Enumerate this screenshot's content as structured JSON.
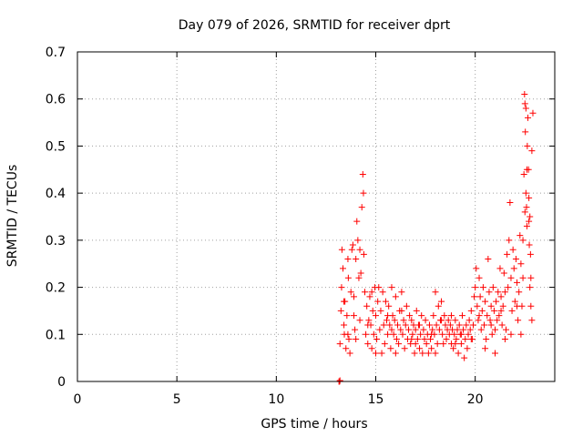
{
  "chart_data": {
    "type": "scatter",
    "title": "Day 079 of 2026, SRMTID for receiver dprt",
    "xlabel": "GPS time / hours",
    "ylabel": "SRMTID / TECUs",
    "xlim": [
      0,
      24
    ],
    "ylim": [
      0,
      0.7
    ],
    "x_ticks": [
      0,
      5,
      10,
      15,
      20
    ],
    "x_tick_labels": [
      "0",
      "5",
      "10",
      "15",
      "20"
    ],
    "y_ticks": [
      0,
      0.1,
      0.2,
      0.3,
      0.4,
      0.5,
      0.6,
      0.7
    ],
    "y_tick_labels": [
      "0",
      "0.1",
      "0.2",
      "0.3",
      "0.4",
      "0.5",
      "0.6",
      "0.7"
    ],
    "grid": true,
    "marker": "+",
    "color": "#ff0000",
    "series": [
      {
        "name": "SRMTID",
        "points": [
          [
            13.15,
            0.0
          ],
          [
            13.18,
            0.0
          ],
          [
            13.2,
            0.002
          ],
          [
            13.2,
            0.08
          ],
          [
            13.25,
            0.15
          ],
          [
            13.28,
            0.2
          ],
          [
            13.3,
            0.28
          ],
          [
            13.35,
            0.24
          ],
          [
            13.4,
            0.12
          ],
          [
            13.42,
            0.1
          ],
          [
            13.45,
            0.17
          ],
          [
            13.5,
            0.07
          ],
          [
            13.55,
            0.14
          ],
          [
            13.6,
            0.26
          ],
          [
            13.62,
            0.22
          ],
          [
            13.65,
            0.09
          ],
          [
            13.7,
            0.06
          ],
          [
            13.75,
            0.19
          ],
          [
            13.8,
            0.28
          ],
          [
            13.85,
            0.29
          ],
          [
            13.9,
            0.14
          ],
          [
            13.95,
            0.11
          ],
          [
            14.0,
            0.26
          ],
          [
            14.05,
            0.34
          ],
          [
            14.1,
            0.3
          ],
          [
            14.15,
            0.22
          ],
          [
            14.2,
            0.28
          ],
          [
            14.25,
            0.23
          ],
          [
            14.3,
            0.37
          ],
          [
            14.35,
            0.44
          ],
          [
            14.38,
            0.4
          ],
          [
            14.4,
            0.27
          ],
          [
            14.45,
            0.19
          ],
          [
            14.5,
            0.1
          ],
          [
            14.55,
            0.16
          ],
          [
            14.6,
            0.08
          ],
          [
            14.65,
            0.13
          ],
          [
            14.7,
            0.18
          ],
          [
            14.75,
            0.12
          ],
          [
            14.8,
            0.07
          ],
          [
            14.85,
            0.15
          ],
          [
            14.9,
            0.1
          ],
          [
            14.95,
            0.2
          ],
          [
            15.0,
            0.14
          ],
          [
            15.05,
            0.09
          ],
          [
            15.1,
            0.17
          ],
          [
            15.15,
            0.2
          ],
          [
            15.2,
            0.11
          ],
          [
            15.25,
            0.15
          ],
          [
            15.3,
            0.06
          ],
          [
            15.35,
            0.19
          ],
          [
            15.4,
            0.12
          ],
          [
            15.45,
            0.08
          ],
          [
            15.5,
            0.17
          ],
          [
            15.55,
            0.13
          ],
          [
            15.6,
            0.1
          ],
          [
            15.65,
            0.16
          ],
          [
            15.7,
            0.12
          ],
          [
            15.75,
            0.07
          ],
          [
            15.8,
            0.2
          ],
          [
            15.85,
            0.14
          ],
          [
            15.9,
            0.1
          ],
          [
            15.95,
            0.13
          ],
          [
            16.0,
            0.18
          ],
          [
            16.05,
            0.09
          ],
          [
            16.1,
            0.12
          ],
          [
            16.15,
            0.08
          ],
          [
            16.2,
            0.15
          ],
          [
            16.25,
            0.11
          ],
          [
            16.3,
            0.19
          ],
          [
            16.35,
            0.1
          ],
          [
            16.4,
            0.13
          ],
          [
            16.45,
            0.07
          ],
          [
            16.5,
            0.12
          ],
          [
            16.55,
            0.16
          ],
          [
            16.6,
            0.09
          ],
          [
            16.65,
            0.11
          ],
          [
            16.7,
            0.14
          ],
          [
            16.75,
            0.08
          ],
          [
            16.8,
            0.13
          ],
          [
            16.85,
            0.1
          ],
          [
            16.9,
            0.12
          ],
          [
            16.95,
            0.06
          ],
          [
            17.0,
            0.11
          ],
          [
            17.05,
            0.15
          ],
          [
            17.1,
            0.09
          ],
          [
            17.15,
            0.12
          ],
          [
            17.2,
            0.07
          ],
          [
            17.25,
            0.1
          ],
          [
            17.3,
            0.14
          ],
          [
            17.35,
            0.06
          ],
          [
            17.4,
            0.11
          ],
          [
            17.45,
            0.09
          ],
          [
            17.5,
            0.13
          ],
          [
            17.55,
            0.08
          ],
          [
            17.6,
            0.1
          ],
          [
            17.65,
            0.06
          ],
          [
            17.7,
            0.12
          ],
          [
            17.75,
            0.09
          ],
          [
            17.8,
            0.07
          ],
          [
            17.85,
            0.11
          ],
          [
            17.9,
            0.14
          ],
          [
            17.95,
            0.1
          ],
          [
            18.0,
            0.19
          ],
          [
            18.05,
            0.12
          ],
          [
            18.1,
            0.08
          ],
          [
            18.15,
            0.16
          ],
          [
            18.2,
            0.11
          ],
          [
            18.25,
            0.13
          ],
          [
            18.3,
            0.17
          ],
          [
            18.35,
            0.1
          ],
          [
            18.4,
            0.08
          ],
          [
            18.45,
            0.14
          ],
          [
            18.5,
            0.12
          ],
          [
            18.55,
            0.09
          ],
          [
            18.6,
            0.11
          ],
          [
            18.65,
            0.13
          ],
          [
            18.7,
            0.1
          ],
          [
            18.75,
            0.12
          ],
          [
            18.8,
            0.08
          ],
          [
            18.85,
            0.11
          ],
          [
            18.9,
            0.07
          ],
          [
            18.95,
            0.1
          ],
          [
            19.0,
            0.13
          ],
          [
            19.05,
            0.09
          ],
          [
            19.1,
            0.11
          ],
          [
            19.15,
            0.06
          ],
          [
            19.2,
            0.12
          ],
          [
            19.25,
            0.1
          ],
          [
            19.3,
            0.08
          ],
          [
            19.35,
            0.14
          ],
          [
            19.4,
            0.11
          ],
          [
            19.45,
            0.05
          ],
          [
            19.5,
            0.09
          ],
          [
            19.55,
            0.12
          ],
          [
            19.6,
            0.07
          ],
          [
            19.65,
            0.1
          ],
          [
            19.7,
            0.13
          ],
          [
            19.75,
            0.11
          ],
          [
            19.8,
            0.15
          ],
          [
            19.85,
            0.09
          ],
          [
            19.9,
            0.12
          ],
          [
            19.95,
            0.18
          ],
          [
            20.0,
            0.2
          ],
          [
            20.05,
            0.24
          ],
          [
            20.1,
            0.16
          ],
          [
            20.15,
            0.13
          ],
          [
            20.2,
            0.22
          ],
          [
            20.25,
            0.18
          ],
          [
            20.3,
            0.11
          ],
          [
            20.35,
            0.15
          ],
          [
            20.4,
            0.2
          ],
          [
            20.45,
            0.12
          ],
          [
            20.5,
            0.17
          ],
          [
            20.55,
            0.09
          ],
          [
            20.6,
            0.14
          ],
          [
            20.65,
            0.26
          ],
          [
            20.7,
            0.19
          ],
          [
            20.75,
            0.13
          ],
          [
            20.8,
            0.16
          ],
          [
            20.85,
            0.1
          ],
          [
            20.9,
            0.2
          ],
          [
            20.95,
            0.15
          ],
          [
            21.0,
            0.11
          ],
          [
            21.05,
            0.17
          ],
          [
            21.1,
            0.13
          ],
          [
            21.15,
            0.19
          ],
          [
            21.2,
            0.14
          ],
          [
            21.25,
            0.24
          ],
          [
            21.3,
            0.18
          ],
          [
            21.35,
            0.12
          ],
          [
            21.4,
            0.16
          ],
          [
            21.45,
            0.23
          ],
          [
            21.5,
            0.19
          ],
          [
            21.55,
            0.11
          ],
          [
            21.6,
            0.27
          ],
          [
            21.65,
            0.2
          ],
          [
            21.7,
            0.3
          ],
          [
            21.75,
            0.38
          ],
          [
            21.8,
            0.22
          ],
          [
            21.85,
            0.15
          ],
          [
            21.9,
            0.28
          ],
          [
            21.95,
            0.24
          ],
          [
            22.0,
            0.17
          ],
          [
            22.05,
            0.26
          ],
          [
            22.1,
            0.21
          ],
          [
            22.15,
            0.13
          ],
          [
            22.2,
            0.19
          ],
          [
            22.25,
            0.31
          ],
          [
            22.3,
            0.25
          ],
          [
            22.35,
            0.16
          ],
          [
            22.4,
            0.22
          ],
          [
            22.45,
            0.44
          ],
          [
            22.48,
            0.61
          ],
          [
            22.5,
            0.59
          ],
          [
            22.52,
            0.53
          ],
          [
            22.55,
            0.4
          ],
          [
            22.58,
            0.37
          ],
          [
            22.6,
            0.33
          ],
          [
            22.62,
            0.5
          ],
          [
            22.65,
            0.56
          ],
          [
            22.68,
            0.45
          ],
          [
            22.7,
            0.34
          ],
          [
            22.72,
            0.29
          ],
          [
            22.75,
            0.2
          ],
          [
            22.78,
            0.27
          ],
          [
            22.8,
            0.22
          ],
          [
            22.85,
            0.13
          ],
          [
            22.4,
            0.3
          ],
          [
            22.3,
            0.1
          ],
          [
            21.5,
            0.09
          ],
          [
            21.0,
            0.06
          ],
          [
            20.5,
            0.07
          ],
          [
            19.0,
            0.08
          ],
          [
            18.0,
            0.06
          ],
          [
            17.0,
            0.08
          ],
          [
            16.0,
            0.06
          ],
          [
            15.0,
            0.06
          ],
          [
            14.0,
            0.09
          ],
          [
            13.6,
            0.1
          ],
          [
            14.2,
            0.13
          ],
          [
            14.8,
            0.19
          ],
          [
            15.6,
            0.14
          ],
          [
            16.3,
            0.15
          ],
          [
            17.2,
            0.12
          ],
          [
            18.3,
            0.13
          ],
          [
            19.3,
            0.1
          ],
          [
            20.2,
            0.14
          ],
          [
            21.3,
            0.15
          ],
          [
            22.1,
            0.16
          ],
          [
            21.8,
            0.1
          ],
          [
            20.8,
            0.12
          ],
          [
            19.8,
            0.09
          ],
          [
            18.8,
            0.14
          ],
          [
            17.8,
            0.1
          ],
          [
            16.8,
            0.09
          ],
          [
            15.8,
            0.11
          ],
          [
            14.6,
            0.12
          ],
          [
            13.9,
            0.18
          ],
          [
            13.4,
            0.17
          ],
          [
            22.9,
            0.57
          ],
          [
            22.85,
            0.49
          ],
          [
            22.7,
            0.39
          ],
          [
            22.6,
            0.45
          ],
          [
            22.5,
            0.36
          ],
          [
            22.55,
            0.58
          ],
          [
            22.75,
            0.35
          ],
          [
            22.8,
            0.16
          ]
        ]
      }
    ]
  }
}
